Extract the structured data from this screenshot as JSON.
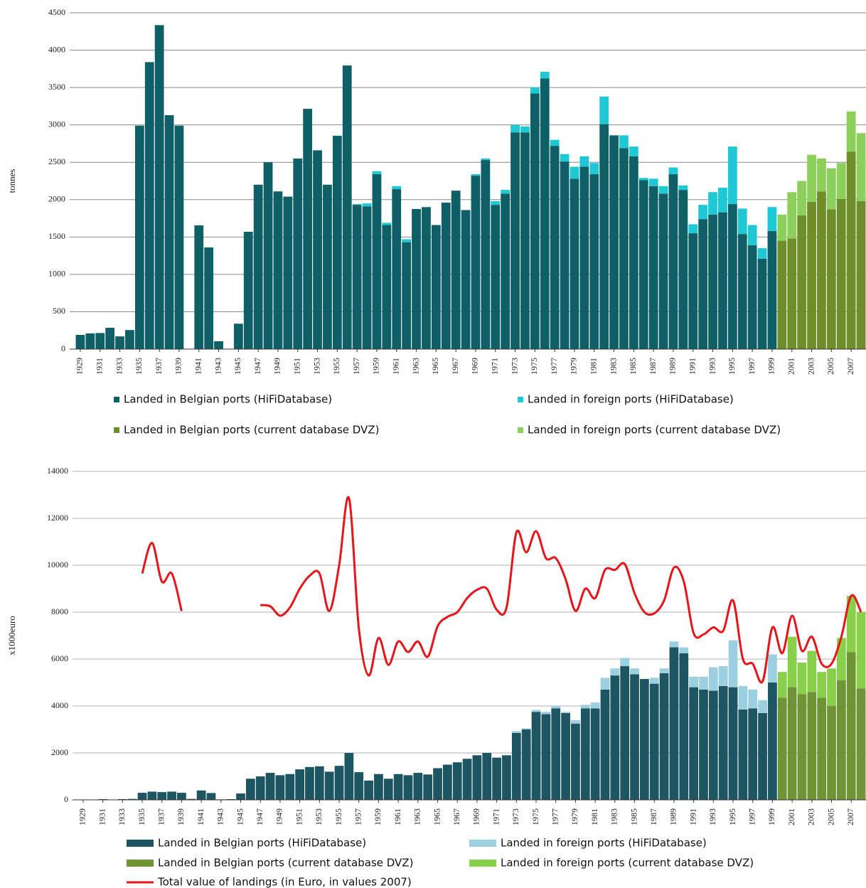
{
  "chart_data": [
    {
      "type": "bar",
      "stacked": true,
      "ylabel": "tonnes",
      "ylim": [
        0,
        4500
      ],
      "yticks": [
        0,
        500,
        1000,
        1500,
        2000,
        2500,
        3000,
        3500,
        4000,
        4500
      ],
      "grid": true,
      "categories": [
        "1929",
        null,
        "1931",
        null,
        "1933",
        null,
        "1935",
        null,
        "1937",
        null,
        "1939",
        null,
        "1941",
        null,
        "1943",
        null,
        "1945",
        null,
        "1947",
        null,
        "1949",
        null,
        "1951",
        null,
        "1953",
        null,
        "1955",
        null,
        "1957",
        null,
        "1959",
        null,
        "1961",
        null,
        "1963",
        null,
        "1965",
        null,
        "1967",
        null,
        "1969",
        null,
        "1971",
        null,
        "1973",
        null,
        "1975",
        null,
        "1977",
        null,
        "1979",
        null,
        "1981",
        null,
        "1983",
        null,
        "1985",
        null,
        "1987",
        null,
        "1989",
        null,
        "1991",
        null,
        "1993",
        null,
        "1995",
        null,
        "1997",
        null,
        "1999",
        null,
        "2001",
        null,
        "2003",
        null,
        "2005",
        null,
        "2007",
        null
      ],
      "series": [
        {
          "name": "Landed in Belgian ports (HiFiDatabase)",
          "color": "#0f5f66",
          "values": [
            190,
            210,
            215,
            285,
            170,
            255,
            2990,
            3840,
            4335,
            3130,
            2990,
            null,
            1655,
            1360,
            105,
            null,
            340,
            1570,
            2200,
            2500,
            2110,
            2040,
            2550,
            3215,
            2660,
            2200,
            2855,
            3795,
            1930,
            1910,
            2340,
            1660,
            2140,
            1430,
            1875,
            1900,
            1660,
            1960,
            2120,
            1860,
            2320,
            2530,
            1930,
            2080,
            2900,
            2900,
            3420,
            3620,
            2720,
            2510,
            2280,
            2440,
            2340,
            3010,
            2860,
            2690,
            2580,
            2260,
            2180,
            2080,
            2340,
            2130,
            1550,
            1740,
            1800,
            1830,
            1940,
            1540,
            1390,
            1210,
            1580,
            null,
            null,
            null,
            null,
            null,
            null,
            null,
            null,
            null
          ]
        },
        {
          "name": "Landed in foreign ports (HiFiDatabase)",
          "color": "#1ec8d4",
          "values": [
            null,
            null,
            null,
            null,
            null,
            null,
            null,
            null,
            null,
            null,
            null,
            null,
            null,
            null,
            null,
            null,
            null,
            null,
            null,
            null,
            null,
            null,
            null,
            null,
            null,
            null,
            null,
            null,
            10,
            40,
            40,
            30,
            40,
            40,
            null,
            null,
            null,
            null,
            null,
            null,
            20,
            20,
            50,
            50,
            100,
            80,
            80,
            90,
            80,
            100,
            160,
            140,
            150,
            370,
            null,
            170,
            130,
            30,
            100,
            100,
            90,
            60,
            120,
            190,
            300,
            330,
            770,
            340,
            270,
            140,
            320,
            null,
            null,
            null,
            null,
            null,
            null,
            null,
            null,
            null
          ]
        },
        {
          "name": "Landed in Belgian ports (current database DVZ)",
          "color": "#6e8e2a",
          "values": [
            null,
            null,
            null,
            null,
            null,
            null,
            null,
            null,
            null,
            null,
            null,
            null,
            null,
            null,
            null,
            null,
            null,
            null,
            null,
            null,
            null,
            null,
            null,
            null,
            null,
            null,
            null,
            null,
            null,
            null,
            null,
            null,
            null,
            null,
            null,
            null,
            null,
            null,
            null,
            null,
            null,
            null,
            null,
            null,
            null,
            null,
            null,
            null,
            null,
            null,
            null,
            null,
            null,
            null,
            null,
            null,
            null,
            null,
            null,
            null,
            null,
            null,
            null,
            null,
            null,
            null,
            null,
            null,
            null,
            null,
            null,
            1450,
            1480,
            1790,
            1970,
            2110,
            1870,
            2010,
            2640,
            1980
          ]
        },
        {
          "name": "Landed in foreign ports (current database DVZ)",
          "color": "#8ccf5a",
          "values": [
            null,
            null,
            null,
            null,
            null,
            null,
            null,
            null,
            null,
            null,
            null,
            null,
            null,
            null,
            null,
            null,
            null,
            null,
            null,
            null,
            null,
            null,
            null,
            null,
            null,
            null,
            null,
            null,
            null,
            null,
            null,
            null,
            null,
            null,
            null,
            null,
            null,
            null,
            null,
            null,
            null,
            null,
            null,
            null,
            null,
            null,
            null,
            null,
            null,
            null,
            null,
            null,
            null,
            null,
            null,
            null,
            null,
            null,
            null,
            null,
            null,
            null,
            null,
            null,
            null,
            null,
            null,
            null,
            null,
            null,
            null,
            350,
            620,
            460,
            630,
            440,
            550,
            480,
            540,
            910
          ]
        }
      ]
    },
    {
      "type": "bar",
      "stacked": true,
      "ylabel": "x1000euro",
      "ylim": [
        0,
        14000
      ],
      "yticks": [
        0,
        2000,
        4000,
        6000,
        8000,
        10000,
        12000,
        14000
      ],
      "grid": true,
      "categories": [
        "1929",
        null,
        "1931",
        null,
        "1933",
        null,
        "1935",
        null,
        "1937",
        null,
        "1939",
        null,
        "1941",
        null,
        "1943",
        null,
        "1945",
        null,
        "1947",
        null,
        "1949",
        null,
        "1951",
        null,
        "1953",
        null,
        "1955",
        null,
        "1957",
        null,
        "1959",
        null,
        "1961",
        null,
        "1963",
        null,
        "1965",
        null,
        "1967",
        null,
        "1969",
        null,
        "1971",
        null,
        "1973",
        null,
        "1975",
        null,
        "1977",
        null,
        "1979",
        null,
        "1981",
        null,
        "1983",
        null,
        "1985",
        null,
        "1987",
        null,
        "1989",
        null,
        "1991",
        null,
        "1993",
        null,
        "1995",
        null,
        "1997",
        null,
        "1999",
        null,
        "2001",
        null,
        "2003",
        null,
        "2005",
        null,
        "2007",
        null
      ],
      "series": [
        {
          "name": "Landed in Belgian ports (HiFiDatabase)",
          "color": "#1d5563",
          "values": [
            10,
            10,
            30,
            10,
            30,
            40,
            300,
            350,
            330,
            350,
            300,
            40,
            400,
            290,
            20,
            30,
            270,
            900,
            1000,
            1150,
            1050,
            1100,
            1300,
            1400,
            1430,
            1200,
            1450,
            2000,
            1180,
            820,
            1100,
            900,
            1100,
            1050,
            1150,
            1080,
            1350,
            1500,
            1600,
            1750,
            1900,
            2000,
            1800,
            1900,
            2850,
            3000,
            3750,
            3650,
            3900,
            3700,
            3250,
            3900,
            3900,
            4700,
            5300,
            5700,
            5350,
            5150,
            4950,
            5400,
            6500,
            6250,
            4800,
            4700,
            4650,
            4850,
            4800,
            3850,
            3900,
            3700,
            5000,
            null,
            null,
            null,
            null,
            null,
            null,
            null,
            null,
            null
          ]
        },
        {
          "name": "Landed in foreign ports (HiFiDatabase)",
          "color": "#9cd0e0",
          "values": [
            null,
            null,
            null,
            null,
            null,
            null,
            null,
            null,
            null,
            null,
            null,
            null,
            null,
            null,
            null,
            null,
            null,
            null,
            null,
            null,
            null,
            null,
            null,
            null,
            null,
            null,
            null,
            null,
            null,
            null,
            null,
            null,
            null,
            null,
            null,
            null,
            null,
            null,
            null,
            null,
            null,
            null,
            null,
            null,
            80,
            50,
            80,
            100,
            100,
            50,
            150,
            150,
            250,
            500,
            300,
            350,
            250,
            null,
            250,
            200,
            250,
            250,
            450,
            550,
            1000,
            850,
            2000,
            1000,
            800,
            550,
            1200,
            null,
            null,
            null,
            null,
            null,
            null,
            null,
            null,
            null
          ]
        },
        {
          "name": "Landed in Belgian ports (current database DVZ)",
          "color": "#6e9436",
          "values": [
            null,
            null,
            null,
            null,
            null,
            null,
            null,
            null,
            null,
            null,
            null,
            null,
            null,
            null,
            null,
            null,
            null,
            null,
            null,
            null,
            null,
            null,
            null,
            null,
            null,
            null,
            null,
            null,
            null,
            null,
            null,
            null,
            null,
            null,
            null,
            null,
            null,
            null,
            null,
            null,
            null,
            null,
            null,
            null,
            null,
            null,
            null,
            null,
            null,
            null,
            null,
            null,
            null,
            null,
            null,
            null,
            null,
            null,
            null,
            null,
            null,
            null,
            null,
            null,
            null,
            null,
            null,
            null,
            null,
            null,
            null,
            4350,
            4800,
            4500,
            4600,
            4350,
            4000,
            5100,
            6300,
            4750
          ]
        },
        {
          "name": "Landed in foreign ports (current database DVZ)",
          "color": "#88d04a",
          "values": [
            null,
            null,
            null,
            null,
            null,
            null,
            null,
            null,
            null,
            null,
            null,
            null,
            null,
            null,
            null,
            null,
            null,
            null,
            null,
            null,
            null,
            null,
            null,
            null,
            null,
            null,
            null,
            null,
            null,
            null,
            null,
            null,
            null,
            null,
            null,
            null,
            null,
            null,
            null,
            null,
            null,
            null,
            null,
            null,
            null,
            null,
            null,
            null,
            null,
            null,
            null,
            null,
            null,
            null,
            null,
            null,
            null,
            null,
            null,
            null,
            null,
            null,
            null,
            null,
            null,
            null,
            null,
            null,
            null,
            null,
            null,
            1100,
            2150,
            1350,
            1750,
            1100,
            1600,
            1800,
            2400,
            3250
          ]
        },
        {
          "name": "Total value of landings (in Euro, in values 2007)",
          "color": "#e8141a",
          "type": "line",
          "values": [
            null,
            null,
            null,
            null,
            null,
            null,
            9650,
            10950,
            9300,
            9650,
            8050,
            null,
            null,
            null,
            null,
            null,
            null,
            null,
            8300,
            8250,
            7850,
            8200,
            9000,
            9550,
            9650,
            8050,
            10000,
            12850,
            7300,
            5300,
            6900,
            5750,
            6750,
            6300,
            6750,
            6100,
            7400,
            7800,
            8000,
            8600,
            8950,
            9000,
            8100,
            8200,
            11400,
            10550,
            11450,
            10300,
            10300,
            9400,
            8050,
            9000,
            8600,
            9800,
            9800,
            10050,
            8800,
            8000,
            7950,
            8500,
            9900,
            9300,
            7100,
            7050,
            7350,
            7200,
            8500,
            6000,
            5800,
            5050,
            7350,
            6250,
            7850,
            6350,
            6950,
            5800,
            5800,
            6950,
            8700,
            8000
          ]
        }
      ]
    }
  ]
}
